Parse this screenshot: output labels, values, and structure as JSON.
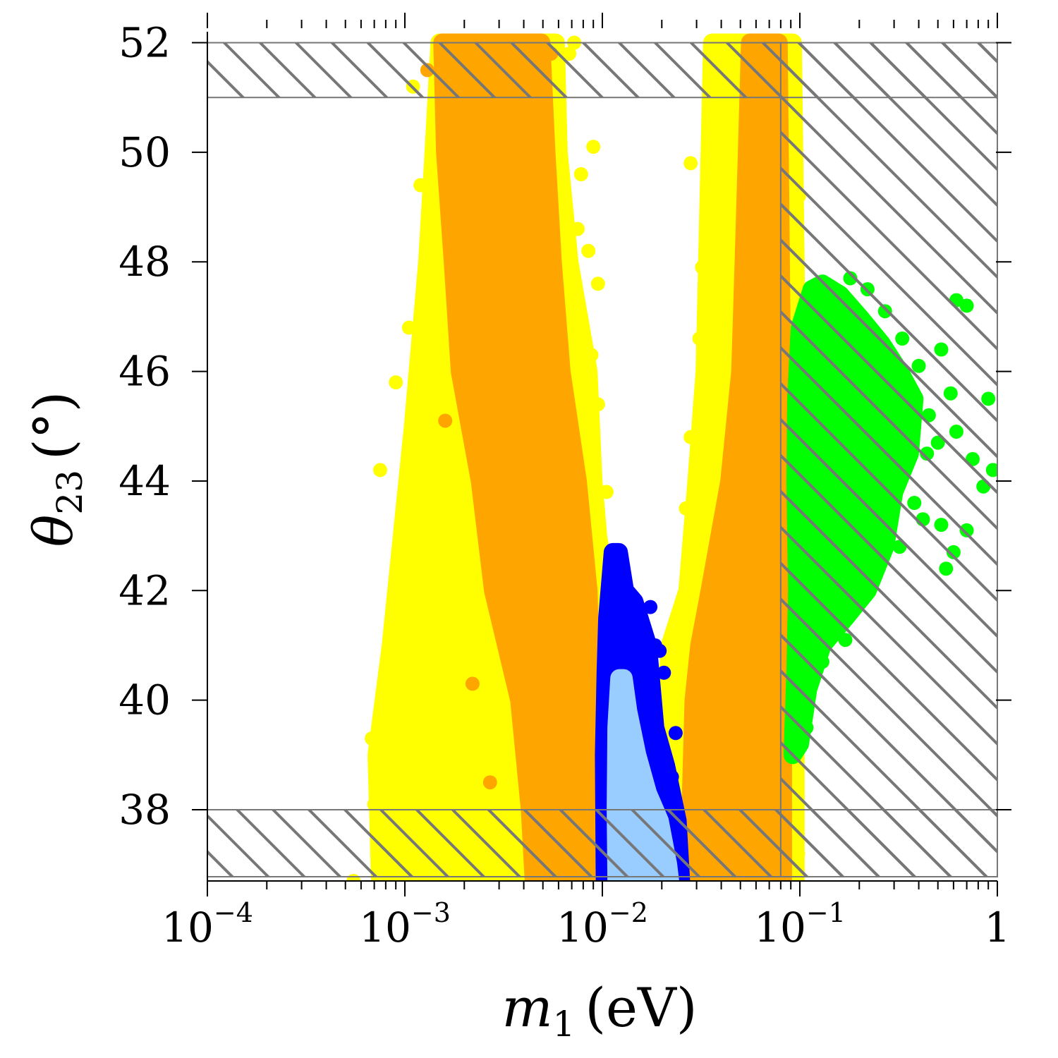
{
  "chart_data": {
    "type": "scatter",
    "title": "",
    "xlabel": {
      "symbol": "m",
      "subscript": "1",
      "unit": "(eV)"
    },
    "ylabel": {
      "symbol": "θ",
      "subscript": "23",
      "unit": "(°)"
    },
    "xscale": "log",
    "xlim": [
      0.0001,
      1
    ],
    "ylim": [
      36.7,
      52.2
    ],
    "grid": false,
    "legend": "none",
    "x_ticks": [
      {
        "value": 0.0001,
        "base": "10",
        "exp": "−4"
      },
      {
        "value": 0.001,
        "base": "10",
        "exp": "−3"
      },
      {
        "value": 0.01,
        "base": "10",
        "exp": "−2"
      },
      {
        "value": 0.1,
        "base": "10",
        "exp": "−1"
      },
      {
        "value": 1,
        "base": "1",
        "exp": ""
      }
    ],
    "y_ticks": [
      "38",
      "40",
      "42",
      "44",
      "46",
      "48",
      "50",
      "52"
    ],
    "excluded_regions": [
      {
        "x": [
          0.0001,
          1
        ],
        "y": [
          51,
          52
        ]
      },
      {
        "x": [
          0.0001,
          1
        ],
        "y": [
          36.7,
          38
        ]
      },
      {
        "x": [
          0.08,
          1
        ],
        "y": [
          36.7,
          52
        ]
      }
    ],
    "colors": {
      "yellow": "#ffff00",
      "orange": "#ffa500",
      "blue": "#0000ff",
      "lightblue": "#99ccff",
      "green": "#00ff00",
      "hatch": "#777777",
      "frame": "#777777"
    },
    "series": [
      {
        "color": "yellow",
        "regions": [
          {
            "x": [
              [
                0.00075,
                36.7
              ],
              [
                0.00072,
                39
              ],
              [
                0.00085,
                41
              ],
              [
                0.0011,
                45
              ],
              [
                0.0013,
                48
              ],
              [
                0.0014,
                50
              ],
              [
                0.0015,
                52
              ],
              [
                0.0058,
                52
              ],
              [
                0.006,
                50
              ],
              [
                0.0068,
                48
              ],
              [
                0.0085,
                46
              ],
              [
                0.009,
                44
              ],
              [
                0.0095,
                43
              ],
              [
                0.0105,
                42
              ],
              [
                0.011,
                40
              ],
              [
                0.0115,
                38
              ],
              [
                0.012,
                36.7
              ]
            ]
          },
          {
            "x": [
              [
                0.02,
                36.7
              ],
              [
                0.021,
                39
              ],
              [
                0.021,
                40
              ],
              [
                0.022,
                41
              ],
              [
                0.027,
                42
              ],
              [
                0.03,
                44
              ],
              [
                0.033,
                46
              ],
              [
                0.034,
                48
              ],
              [
                0.035,
                50
              ],
              [
                0.036,
                52
              ],
              [
                0.092,
                52
              ],
              [
                0.095,
                48
              ],
              [
                0.097,
                44
              ],
              [
                0.095,
                40
              ],
              [
                0.095,
                36.7
              ]
            ]
          }
        ],
        "outliers": [
          [
            0.00055,
            36.7
          ],
          [
            0.0007,
            38.1
          ],
          [
            0.00068,
            39.3
          ],
          [
            0.00075,
            44.2
          ],
          [
            0.0009,
            45.8
          ],
          [
            0.00105,
            46.8
          ],
          [
            0.0012,
            49.4
          ],
          [
            0.0011,
            51.2
          ],
          [
            0.0075,
            48.6
          ],
          [
            0.0085,
            48.2
          ],
          [
            0.0095,
            47.6
          ],
          [
            0.0088,
            46.3
          ],
          [
            0.0095,
            45.4
          ],
          [
            0.0085,
            44.5
          ],
          [
            0.0105,
            43.8
          ],
          [
            0.0078,
            49.6
          ],
          [
            0.009,
            50.1
          ],
          [
            0.0068,
            51.8
          ],
          [
            0.0072,
            52
          ],
          [
            0.0265,
            43.5
          ],
          [
            0.028,
            44.8
          ],
          [
            0.031,
            46.6
          ],
          [
            0.032,
            47.9
          ],
          [
            0.028,
            49.8
          ],
          [
            0.038,
            51.8
          ],
          [
            0.0042,
            36.7
          ],
          [
            0.0045,
            37.1
          ],
          [
            0.0035,
            38.5
          ],
          [
            0.019,
            36.7
          ],
          [
            0.031,
            36.9
          ],
          [
            0.098,
            37.2
          ],
          [
            0.1,
            41.5
          ],
          [
            0.1,
            44.9
          ],
          [
            0.099,
            49.2
          ]
        ]
      },
      {
        "color": "orange",
        "regions": [
          {
            "x": [
              [
                0.00155,
                52
              ],
              [
                0.0049,
                52
              ],
              [
                0.0052,
                50
              ],
              [
                0.0056,
                48
              ],
              [
                0.0062,
                46
              ],
              [
                0.0075,
                44
              ],
              [
                0.0085,
                42
              ],
              [
                0.0088,
                40
              ],
              [
                0.0092,
                38
              ],
              [
                0.0094,
                36.7
              ],
              [
                0.0045,
                36.7
              ],
              [
                0.0043,
                38
              ],
              [
                0.0038,
                40
              ],
              [
                0.0028,
                42
              ],
              [
                0.0024,
                44
              ],
              [
                0.0019,
                46
              ],
              [
                0.00175,
                48
              ],
              [
                0.0016,
                50
              ]
            ]
          },
          {
            "x": [
              [
                0.027,
                36.7
              ],
              [
                0.028,
                38
              ],
              [
                0.029,
                40
              ],
              [
                0.031,
                41
              ],
              [
                0.035,
                42
              ],
              [
                0.044,
                44
              ],
              [
                0.05,
                46
              ],
              [
                0.052,
                48
              ],
              [
                0.054,
                50
              ],
              [
                0.056,
                52
              ],
              [
                0.078,
                52
              ],
              [
                0.08,
                48
              ],
              [
                0.082,
                44
              ],
              [
                0.082,
                40
              ],
              [
                0.082,
                36.7
              ]
            ]
          }
        ],
        "outliers": [
          [
            0.0027,
            38.5
          ],
          [
            0.0022,
            40.3
          ],
          [
            0.0016,
            45.1
          ],
          [
            0.0013,
            51.5
          ],
          [
            0.0055,
            51.8
          ]
        ]
      },
      {
        "color": "blue",
        "regions": [
          {
            "x": [
              [
                0.0103,
                36.7
              ],
              [
                0.0102,
                39
              ],
              [
                0.0104,
                40.5
              ],
              [
                0.0106,
                41.5
              ],
              [
                0.0113,
                42.7
              ],
              [
                0.0121,
                42.7
              ],
              [
                0.013,
                42
              ],
              [
                0.0145,
                41.8
              ],
              [
                0.017,
                41
              ],
              [
                0.0185,
                39.5
              ],
              [
                0.021,
                38.8
              ],
              [
                0.024,
                37.8
              ],
              [
                0.025,
                36.7
              ]
            ]
          }
        ],
        "outliers": [
          [
            0.0175,
            41.7
          ],
          [
            0.0185,
            41
          ],
          [
            0.0205,
            40.5
          ],
          [
            0.0235,
            39.4
          ],
          [
            0.0225,
            38.6
          ],
          [
            0.0195,
            40.9
          ]
        ]
      },
      {
        "color": "lightblue",
        "regions": [
          {
            "x": [
              [
                0.0118,
                36.7
              ],
              [
                0.0117,
                38
              ],
              [
                0.0118,
                39.5
              ],
              [
                0.0122,
                40.4
              ],
              [
                0.0128,
                40.4
              ],
              [
                0.0135,
                39.8
              ],
              [
                0.015,
                39
              ],
              [
                0.017,
                38.3
              ],
              [
                0.0195,
                37.8
              ],
              [
                0.0215,
                37
              ],
              [
                0.022,
                36.7
              ]
            ]
          }
        ],
        "outliers": []
      },
      {
        "color": "green",
        "regions": [
          {
            "x": [
              [
                0.092,
                39
              ],
              [
                0.095,
                40.5
              ],
              [
                0.097,
                42
              ],
              [
                0.095,
                44
              ],
              [
                0.096,
                45.5
              ],
              [
                0.1,
                46.8
              ],
              [
                0.115,
                47.5
              ],
              [
                0.13,
                47.6
              ],
              [
                0.16,
                47.4
              ],
              [
                0.2,
                47
              ],
              [
                0.26,
                46.5
              ],
              [
                0.32,
                46
              ],
              [
                0.38,
                45.5
              ],
              [
                0.36,
                44.5
              ],
              [
                0.3,
                43.8
              ],
              [
                0.27,
                42.8
              ],
              [
                0.22,
                42
              ],
              [
                0.17,
                41.5
              ],
              [
                0.13,
                41
              ],
              [
                0.11,
                40.2
              ],
              [
                0.1,
                39.2
              ]
            ]
          }
        ],
        "outliers": [
          [
            0.62,
            47.3
          ],
          [
            0.7,
            47.2
          ],
          [
            0.52,
            46.4
          ],
          [
            0.45,
            45.2
          ],
          [
            0.58,
            45.6
          ],
          [
            0.9,
            45.5
          ],
          [
            0.75,
            44.4
          ],
          [
            0.85,
            43.9
          ],
          [
            0.95,
            44.2
          ],
          [
            0.7,
            43.1
          ],
          [
            0.6,
            42.7
          ],
          [
            0.55,
            42.4
          ],
          [
            0.52,
            43.2
          ],
          [
            0.42,
            43.3
          ],
          [
            0.38,
            43.6
          ],
          [
            0.32,
            42.8
          ],
          [
            0.25,
            42.6
          ],
          [
            0.2,
            41.8
          ],
          [
            0.17,
            41.1
          ],
          [
            0.13,
            40.7
          ],
          [
            0.108,
            39.5
          ],
          [
            0.1,
            39.2
          ],
          [
            0.18,
            47.7
          ],
          [
            0.22,
            47.5
          ],
          [
            0.27,
            47.1
          ],
          [
            0.33,
            46.6
          ],
          [
            0.4,
            46.1
          ],
          [
            0.5,
            44.7
          ],
          [
            0.62,
            44.9
          ],
          [
            0.44,
            44.5
          ]
        ]
      }
    ]
  }
}
